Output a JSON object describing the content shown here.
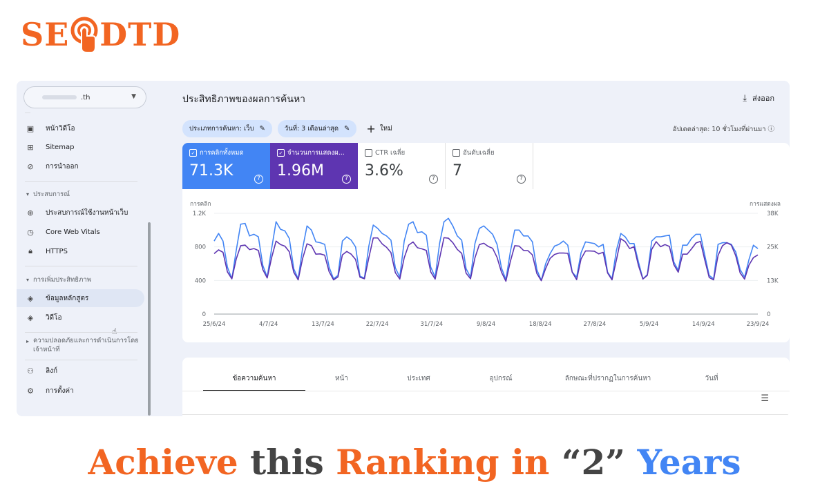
{
  "brand": {
    "left": "SE",
    "right": "DTD",
    "color": "#f26522"
  },
  "sidebar": {
    "property_suffix": ".th",
    "items_top": [
      {
        "icon": "video-page-icon",
        "label": "หน้าวิดีโอ"
      },
      {
        "icon": "sitemap-icon",
        "label": "Sitemap"
      },
      {
        "icon": "removals-icon",
        "label": "การนำออก"
      }
    ],
    "section_experience": "ประสบการณ์",
    "items_experience": [
      {
        "icon": "page-experience-icon",
        "label": "ประสบการณ์ใช้งานหน้าเว็บ"
      },
      {
        "icon": "core-web-vitals-icon",
        "label": "Core Web Vitals"
      },
      {
        "icon": "https-lock-icon",
        "label": "HTTPS"
      }
    ],
    "section_enhancements": "การเพิ่มประสิทธิภาพ",
    "items_enhancements": [
      {
        "icon": "layers-icon",
        "label": "ข้อมูลหลักสูตร",
        "selected": true
      },
      {
        "icon": "layers-icon",
        "label": "วิดีโอ"
      }
    ],
    "section_security": [
      "ความปลอดภัยและการดำเนินการโดย",
      "เจ้าหน้าที่"
    ],
    "items_bottom": [
      {
        "icon": "links-icon",
        "label": "ลิงก์"
      },
      {
        "icon": "settings-icon",
        "label": "การตั้งค่า"
      }
    ]
  },
  "header": {
    "title": "ประสิทธิภาพของผลการค้นหา",
    "export_label": "ส่งออก",
    "chip_search_type": "ประเภทการค้นหา: เว็บ",
    "chip_date": "วันที่: 3 เดือนล่าสุด",
    "new_label": "ใหม่",
    "updated": "อัปเดตล่าสุด: 10 ชั่วโมงที่ผ่านมา"
  },
  "metrics": [
    {
      "label": "การคลิกทั้งหมด",
      "value": "71.3K",
      "checked": true,
      "color": "#4285f4"
    },
    {
      "label": "จำนวนการแสดงผ...",
      "value": "1.96M",
      "checked": true,
      "color": "#5e35b1"
    },
    {
      "label": "CTR เฉลี่ย",
      "value": "3.6%",
      "checked": false
    },
    {
      "label": "อันดับเฉลี่ย",
      "value": "7",
      "checked": false
    }
  ],
  "chart_data": {
    "type": "line",
    "left_axis_label": "การคลิก",
    "right_axis_label": "การแสดงผล",
    "left_ticks": [
      "1.2K",
      "800",
      "400",
      "0"
    ],
    "right_ticks": [
      "38K",
      "25K",
      "13K",
      "0"
    ],
    "ylim_left": [
      0,
      1200
    ],
    "ylim_right": [
      0,
      38000
    ],
    "x_tick_labels": [
      "25/6/24",
      "4/7/24",
      "13/7/24",
      "22/7/24",
      "31/7/24",
      "9/8/24",
      "18/8/24",
      "27/8/24",
      "5/9/24",
      "14/9/24",
      "23/9/24"
    ],
    "grid": true,
    "series": [
      {
        "name": "การคลิก",
        "color": "#4285f4",
        "axis": "left",
        "values": [
          870,
          960,
          870,
          560,
          420,
          760,
          1070,
          1080,
          930,
          950,
          920,
          580,
          440,
          780,
          1100,
          1010,
          990,
          900,
          540,
          420,
          780,
          1050,
          1000,
          860,
          850,
          830,
          560,
          420,
          460,
          870,
          920,
          880,
          800,
          450,
          430,
          810,
          1060,
          1020,
          960,
          930,
          880,
          550,
          440,
          870,
          1070,
          1100,
          970,
          980,
          940,
          560,
          440,
          840,
          1100,
          1140,
          1050,
          930,
          880,
          540,
          440,
          840,
          1020,
          1050,
          1000,
          950,
          830,
          550,
          410,
          740,
          1000,
          1000,
          930,
          930,
          860,
          530,
          400,
          600,
          720,
          810,
          830,
          870,
          820,
          500,
          440,
          730,
          860,
          850,
          840,
          800,
          830,
          500,
          420,
          760,
          960,
          920,
          840,
          840,
          620,
          420,
          470,
          870,
          920,
          920,
          930,
          940,
          620,
          520,
          820,
          820,
          900,
          950,
          950,
          700,
          460,
          420,
          830,
          850,
          850,
          830,
          740,
          530,
          440,
          650,
          820,
          780
        ]
      },
      {
        "name": "การแสดงผล",
        "color": "#5e35b1",
        "axis": "right",
        "values": [
          22800,
          24200,
          23300,
          15900,
          13300,
          20800,
          25800,
          26000,
          24300,
          24700,
          24000,
          16800,
          13600,
          21300,
          27500,
          26200,
          25600,
          23500,
          15800,
          12900,
          20900,
          26500,
          25800,
          22600,
          22700,
          22200,
          16000,
          12900,
          14000,
          22300,
          23600,
          22600,
          20600,
          13900,
          13300,
          21200,
          28700,
          28700,
          26500,
          25200,
          23200,
          15600,
          13200,
          21200,
          26000,
          27200,
          25000,
          24600,
          24000,
          15900,
          13200,
          21000,
          28800,
          28600,
          26900,
          24400,
          22900,
          15400,
          13300,
          21200,
          26200,
          26700,
          25500,
          24800,
          21400,
          15800,
          12400,
          19800,
          25800,
          25600,
          24000,
          23900,
          22300,
          15300,
          12600,
          17200,
          21000,
          22500,
          23000,
          23000,
          22900,
          15800,
          13000,
          20800,
          23800,
          23800,
          23700,
          22700,
          23300,
          15500,
          12900,
          20400,
          28400,
          27300,
          24700,
          25400,
          18300,
          13200,
          14600,
          24400,
          27300,
          25400,
          26200,
          25500,
          18600,
          15800,
          22600,
          22600,
          24600,
          26800,
          27400,
          20400,
          13800,
          12900,
          22100,
          25800,
          26900,
          26000,
          22000,
          15500,
          13200,
          18500,
          21300,
          22300
        ]
      }
    ]
  },
  "table": {
    "tabs": [
      "ข้อความค้นหา",
      "หน้า",
      "ประเทศ",
      "อุปกรณ์",
      "ลักษณะที่ปรากฏในการค้นหา",
      "วันที่"
    ]
  },
  "headline": {
    "part1": "Achieve",
    "part2": "this",
    "part3": "Ranking in",
    "part4": "“2”",
    "part5": "Years"
  }
}
